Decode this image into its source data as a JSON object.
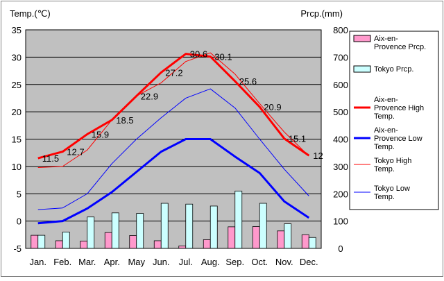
{
  "chart_data": {
    "type": "bar+line",
    "title": "",
    "categories": [
      "Jan.",
      "Feb.",
      "Mar.",
      "Apr.",
      "May",
      "Jun.",
      "Jul.",
      "Aug.",
      "Sep.",
      "Oct.",
      "Nov.",
      "Dec."
    ],
    "left_axis": {
      "label": "Temp.(℃)",
      "ylim": [
        -5,
        35
      ],
      "ticks": [
        -5,
        0,
        5,
        10,
        15,
        20,
        25,
        30,
        35
      ]
    },
    "right_axis": {
      "label": "Prcp.(mm)",
      "ylim": [
        0,
        800
      ],
      "ticks": [
        0,
        100,
        200,
        300,
        400,
        500,
        600,
        700,
        800
      ]
    },
    "grid": true,
    "legend_position": "right",
    "series": [
      {
        "name": "Aix-en-Provence Prcp.",
        "kind": "bar",
        "axis": "right",
        "color": "#ff99cc",
        "values": [
          48,
          28,
          27,
          58,
          47,
          28,
          9,
          32,
          79,
          80,
          64,
          50
        ]
      },
      {
        "name": "Tokyo Prcp.",
        "kind": "bar",
        "axis": "right",
        "color": "#ccffff",
        "values": [
          48,
          60,
          115,
          130,
          128,
          165,
          162,
          155,
          210,
          165,
          90,
          40
        ]
      },
      {
        "name": "Aix-en-Provence High Temp.",
        "kind": "line",
        "axis": "left",
        "color": "#ff0000",
        "width": 3,
        "values": [
          11.5,
          12.7,
          15.9,
          18.5,
          22.9,
          27.2,
          30.6,
          30.1,
          25.6,
          20.9,
          15.1,
          12.0
        ],
        "data_labels": [
          "11.5",
          "12.7",
          "15.9",
          "18.5",
          "22.9",
          "27.2",
          "30.6",
          "30.1",
          "25.6",
          "20.9",
          "15.1",
          "12"
        ]
      },
      {
        "name": "Aix-en-Provence Low Temp.",
        "kind": "line",
        "axis": "left",
        "color": "#0000ff",
        "width": 3,
        "values": [
          -0.4,
          0.0,
          2.3,
          5.3,
          9.0,
          12.7,
          15.0,
          15.0,
          11.8,
          8.8,
          3.6,
          0.6
        ]
      },
      {
        "name": "Tokyo High Temp.",
        "kind": "line",
        "axis": "left",
        "color": "#ff0000",
        "width": 1,
        "values": [
          9.8,
          10.0,
          13.0,
          18.5,
          22.9,
          25.3,
          29.2,
          30.8,
          26.9,
          21.5,
          16.3,
          11.9
        ]
      },
      {
        "name": "Tokyo Low Temp.",
        "kind": "line",
        "axis": "left",
        "color": "#0000ff",
        "width": 1,
        "values": [
          2.1,
          2.4,
          5.0,
          10.5,
          15.0,
          18.9,
          22.5,
          24.2,
          20.7,
          15.0,
          9.5,
          4.6
        ]
      }
    ],
    "legend": [
      {
        "text": "Aix-en-\nProvence Prcp.",
        "marker": "box",
        "color": "#ff99cc",
        "width": 0
      },
      {
        "text": "Tokyo Prcp.",
        "marker": "box",
        "color": "#ccffff",
        "width": 0
      },
      {
        "text": "Aix-en-\nProvence High\nTemp.",
        "marker": "line",
        "color": "#ff0000",
        "width": 3
      },
      {
        "text": "Aix-en-\nProvence Low\nTemp.",
        "marker": "line",
        "color": "#0000ff",
        "width": 3
      },
      {
        "text": "Tokyo High\nTemp.",
        "marker": "line",
        "color": "#ff0000",
        "width": 1
      },
      {
        "text": "Tokyo Low\nTemp.",
        "marker": "line",
        "color": "#0000ff",
        "width": 1
      }
    ],
    "colors": {
      "plot_background": "#c0c0c0",
      "grid": "#000000"
    }
  }
}
